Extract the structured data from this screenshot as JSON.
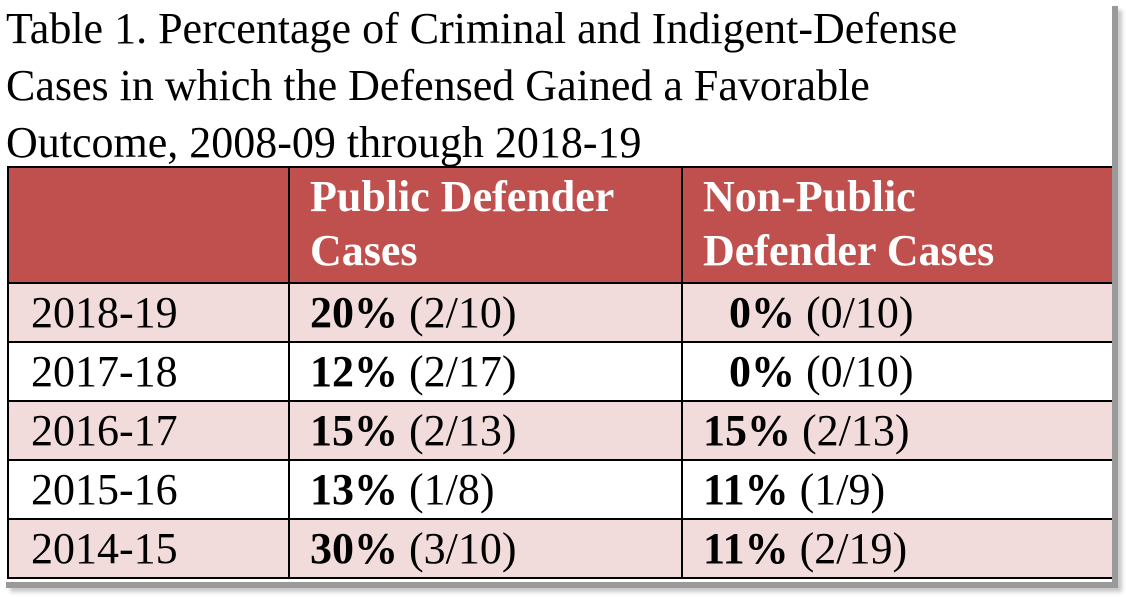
{
  "caption": {
    "line1": "Table 1.  Percentage of Criminal and Indigent-Defense",
    "line2": "Cases in which the Defensed Gained a Favorable",
    "line3": "Outcome, 2008-09 through 2018-19"
  },
  "table": {
    "header": {
      "col0": "",
      "col1_line1": "Public Defender",
      "col1_line2": "Cases",
      "col2_line1": "Non-Public",
      "col2_line2": "Defender Cases"
    },
    "rows": [
      {
        "year": "2018-19",
        "pd_pct": "20%",
        "pd_ratio": " (2/10)",
        "npd_pct": "0%",
        "npd_ratio": " (0/10)"
      },
      {
        "year": "2017-18",
        "pd_pct": "12%",
        "pd_ratio": " (2/17)",
        "npd_pct": "0%",
        "npd_ratio": " (0/10)"
      },
      {
        "year": "2016-17",
        "pd_pct": "15%",
        "pd_ratio": " (2/13)",
        "npd_pct": "15%",
        "npd_ratio": " (2/13)"
      },
      {
        "year": "2015-16",
        "pd_pct": "13%",
        "pd_ratio": " (1/8)",
        "npd_pct": "11%",
        "npd_ratio": " (1/9)"
      },
      {
        "year": "2014-15",
        "pd_pct": "30%",
        "pd_ratio": " (3/10)",
        "npd_pct": "11%",
        "npd_ratio": " (2/19)"
      }
    ]
  },
  "colors": {
    "header_bg": "#c0504d",
    "header_text": "#ffffff",
    "row_shade": "#f2dcdb",
    "row_plain": "#ffffff"
  }
}
